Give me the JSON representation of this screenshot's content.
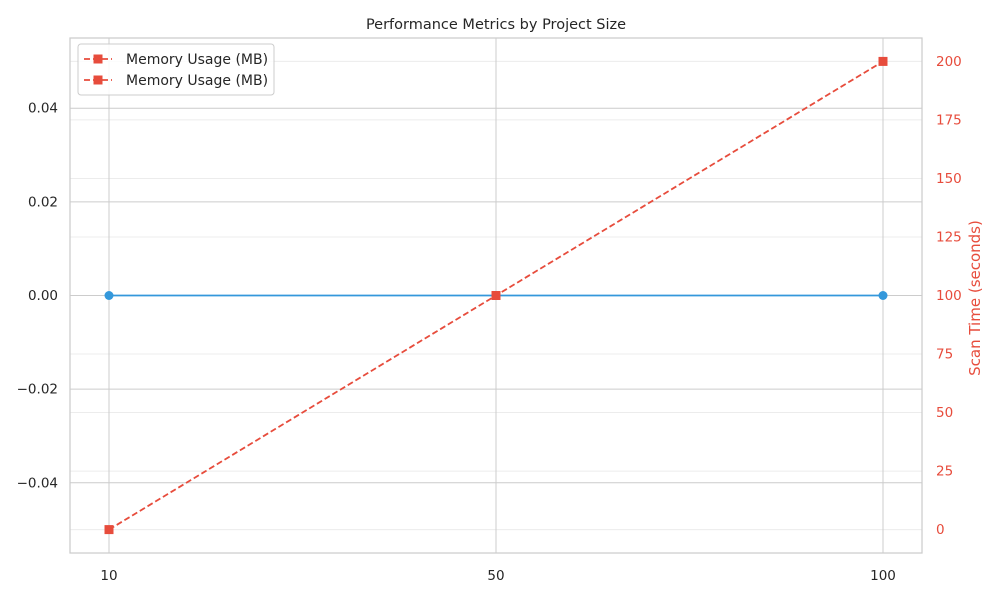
{
  "chart_data": {
    "type": "line",
    "title": "Performance Metrics by Project Size",
    "x": [
      10,
      50,
      100
    ],
    "x_tick_labels": [
      "10",
      "50",
      "100"
    ],
    "xlabel": "",
    "ylabel_left": "",
    "ylabel_right": "Scan Time (seconds)",
    "left_axis": {
      "ylim": [
        -0.055,
        0.055
      ],
      "ticks": [
        -0.04,
        -0.02,
        0.0,
        0.02,
        0.04
      ],
      "tick_labels": [
        "−0.04",
        "−0.02",
        "0.00",
        "0.02",
        "0.04"
      ]
    },
    "right_axis": {
      "ylim": [
        -10,
        210
      ],
      "ticks": [
        0,
        25,
        50,
        75,
        100,
        125,
        150,
        175,
        200
      ],
      "tick_labels": [
        "0",
        "25",
        "50",
        "75",
        "100",
        "125",
        "150",
        "175",
        "200"
      ]
    },
    "series": [
      {
        "axis": "left",
        "color": "#3498db",
        "marker": "circle",
        "linestyle": "solid",
        "values": [
          0,
          0,
          0
        ]
      },
      {
        "name": "Memory Usage (MB)",
        "axis": "right",
        "color": "#e74c3c",
        "marker": "square",
        "linestyle": "dashed",
        "values": [
          0,
          100,
          200
        ]
      }
    ],
    "legend": {
      "position": "top-left",
      "entries": [
        {
          "label": "Memory Usage (MB)",
          "color": "#e74c3c",
          "marker": "square",
          "linestyle": "dashed"
        },
        {
          "label": "Memory Usage (MB)",
          "color": "#e74c3c",
          "marker": "square",
          "linestyle": "dashed"
        }
      ]
    },
    "grid": true,
    "colors": {
      "grid": "#e0e0e0",
      "axes": "#cccccc",
      "right_axis_text": "#e74c3c"
    }
  }
}
